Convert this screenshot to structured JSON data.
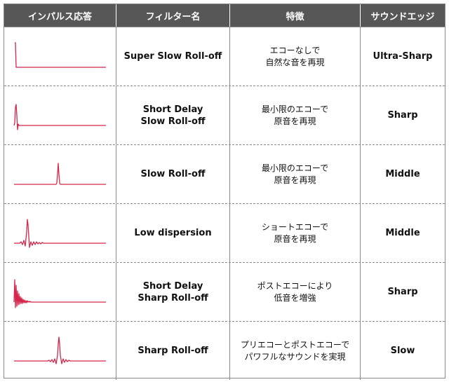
{
  "headers": [
    "インパルス応答",
    "フィルター名",
    "特徴",
    "サウンドエッジ"
  ],
  "accent_color": "#d4264a",
  "header_bg": "#575757",
  "rows": [
    {
      "impulse": "step",
      "filter": "Super Slow Roll-off",
      "feature": "エコーなしで\n自然な音を再現",
      "edge": "Ultra-Sharp"
    },
    {
      "impulse": "early-pulse",
      "filter": "Short Delay\nSlow Roll-off",
      "feature": "最小限のエコーで\n原音を再現",
      "edge": "Sharp"
    },
    {
      "impulse": "mid-pulse",
      "filter": "Slow Roll-off",
      "feature": "最小限のエコーで\n原音を再現",
      "edge": "Middle"
    },
    {
      "impulse": "early-ringing",
      "filter": "Low dispersion",
      "feature": "ショートエコーで\n原音を再現",
      "edge": "Middle"
    },
    {
      "impulse": "early-strong-ringing",
      "filter": "Short Delay\nSharp Roll-off",
      "feature": "ポストエコーにより\n低音を増強",
      "edge": "Sharp"
    },
    {
      "impulse": "symmetric-sinc",
      "filter": "Sharp Roll-off",
      "feature": "プリエコーとポストエコーで\nパワフルなサウンドを実現",
      "edge": "Slow"
    }
  ]
}
